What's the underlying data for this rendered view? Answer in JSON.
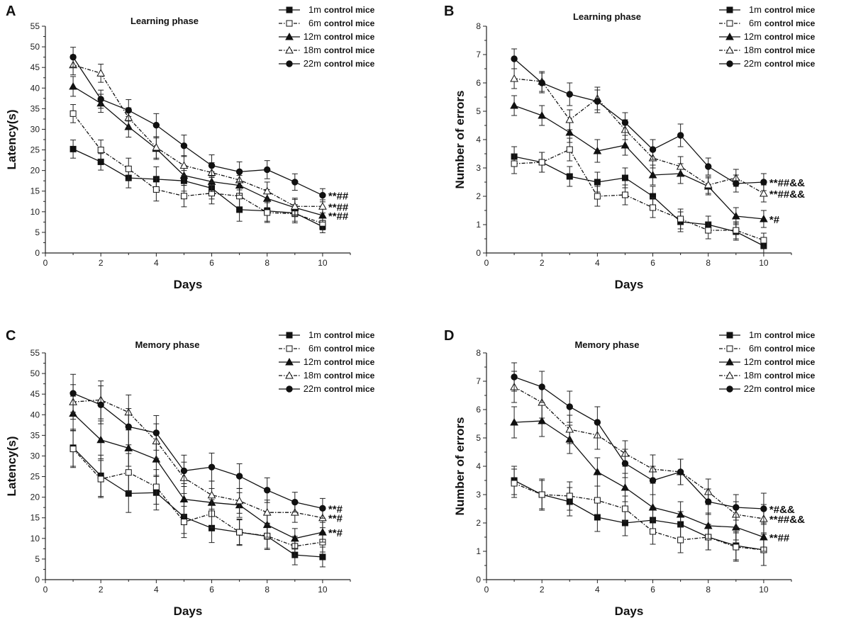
{
  "figure": {
    "legend_suffix": "control mice"
  },
  "chart_data": [
    {
      "panel": "A",
      "type": "line",
      "title": "Learning phase",
      "xlabel": "Days",
      "ylabel": "Latency(s)",
      "xlim": [
        0,
        11
      ],
      "ylim": [
        0,
        55
      ],
      "xticks": [
        0,
        2,
        4,
        6,
        8,
        10
      ],
      "yticks": [
        0,
        5,
        10,
        15,
        20,
        25,
        30,
        35,
        40,
        45,
        50,
        55
      ],
      "x": [
        1,
        2,
        3,
        4,
        5,
        6,
        7,
        8,
        9,
        10
      ],
      "series": [
        {
          "name": "1m",
          "marker": "square",
          "filled": true,
          "dashed": false,
          "values": [
            25.2,
            22.1,
            18.2,
            17.9,
            17.5,
            15.7,
            10.5,
            10.2,
            9.7,
            6.4
          ],
          "errors": [
            2.2,
            2.0,
            2.4,
            3.0,
            2.5,
            2.6,
            2.8,
            2.5,
            2.0,
            1.5
          ]
        },
        {
          "name": "6m",
          "marker": "square",
          "filled": false,
          "dashed": true,
          "values": [
            33.8,
            25.0,
            20.4,
            15.4,
            13.8,
            14.5,
            13.8,
            9.8,
            9.5,
            7.2
          ],
          "errors": [
            2.2,
            2.4,
            2.6,
            2.8,
            2.6,
            2.6,
            2.6,
            2.4,
            2.2,
            1.6
          ]
        },
        {
          "name": "12m",
          "marker": "triangle",
          "filled": true,
          "dashed": false,
          "values": [
            40.4,
            36.3,
            30.6,
            25.3,
            18.8,
            17.3,
            16.4,
            13.2,
            11.0,
            9.1
          ],
          "errors": [
            2.4,
            2.2,
            2.5,
            2.6,
            2.4,
            2.4,
            2.4,
            2.2,
            2.0,
            1.6
          ]
        },
        {
          "name": "18m",
          "marker": "triangle",
          "filled": false,
          "dashed": true,
          "values": [
            45.6,
            43.6,
            32.8,
            25.6,
            21.2,
            19.5,
            17.7,
            15.0,
            11.3,
            11.3
          ],
          "errors": [
            2.4,
            2.2,
            2.4,
            2.6,
            2.4,
            2.4,
            2.4,
            2.2,
            2.0,
            1.6
          ]
        },
        {
          "name": "22m",
          "marker": "circle",
          "filled": true,
          "dashed": false,
          "values": [
            47.5,
            37.3,
            34.6,
            31.0,
            26.0,
            21.2,
            19.7,
            20.2,
            17.2,
            14.0
          ],
          "errors": [
            2.4,
            2.2,
            2.6,
            2.8,
            2.6,
            2.6,
            2.4,
            2.2,
            2.0,
            1.6
          ]
        }
      ],
      "significance": [
        {
          "series": "22m",
          "label": "**##"
        },
        {
          "series": "18m",
          "label": "**##"
        },
        {
          "series": "12m",
          "label": "**##"
        }
      ]
    },
    {
      "panel": "B",
      "type": "line",
      "title": "Learning phase",
      "xlabel": "Days",
      "ylabel": "Number of errors",
      "xlim": [
        0,
        11
      ],
      "ylim": [
        0,
        8
      ],
      "xticks": [
        0,
        2,
        4,
        6,
        8,
        10
      ],
      "yticks": [
        0,
        1,
        2,
        3,
        4,
        5,
        6,
        7,
        8
      ],
      "x": [
        1,
        2,
        3,
        4,
        5,
        6,
        7,
        8,
        9,
        10
      ],
      "series": [
        {
          "name": "1m",
          "marker": "square",
          "filled": true,
          "dashed": false,
          "values": [
            3.4,
            3.2,
            2.7,
            2.5,
            2.65,
            2.0,
            1.1,
            1.0,
            0.75,
            0.25
          ],
          "errors": [
            0.35,
            0.35,
            0.35,
            0.35,
            0.35,
            0.35,
            0.35,
            0.3,
            0.3,
            0.25
          ]
        },
        {
          "name": "6m",
          "marker": "square",
          "filled": false,
          "dashed": true,
          "values": [
            3.15,
            3.2,
            3.65,
            2.0,
            2.05,
            1.6,
            1.2,
            0.8,
            0.8,
            0.45
          ],
          "errors": [
            0.35,
            0.35,
            0.4,
            0.35,
            0.35,
            0.35,
            0.35,
            0.3,
            0.3,
            0.25
          ]
        },
        {
          "name": "12m",
          "marker": "triangle",
          "filled": true,
          "dashed": false,
          "values": [
            5.2,
            4.85,
            4.25,
            3.6,
            3.8,
            2.75,
            2.8,
            2.35,
            1.3,
            1.2
          ],
          "errors": [
            0.35,
            0.35,
            0.35,
            0.4,
            0.35,
            0.35,
            0.35,
            0.3,
            0.3,
            0.3
          ]
        },
        {
          "name": "18m",
          "marker": "triangle",
          "filled": false,
          "dashed": true,
          "values": [
            6.15,
            6.05,
            4.7,
            5.45,
            4.35,
            3.35,
            3.05,
            2.4,
            2.65,
            2.1
          ],
          "errors": [
            0.35,
            0.35,
            0.35,
            0.4,
            0.35,
            0.35,
            0.35,
            0.3,
            0.3,
            0.3
          ]
        },
        {
          "name": "22m",
          "marker": "circle",
          "filled": true,
          "dashed": false,
          "values": [
            6.85,
            6.0,
            5.6,
            5.35,
            4.6,
            3.65,
            4.15,
            3.05,
            2.45,
            2.5
          ],
          "errors": [
            0.35,
            0.35,
            0.4,
            0.4,
            0.35,
            0.35,
            0.4,
            0.3,
            0.3,
            0.3
          ]
        }
      ],
      "significance": [
        {
          "series": "22m",
          "label": "**##&&"
        },
        {
          "series": "18m",
          "label": "**##&&"
        },
        {
          "series": "12m",
          "label": "*#"
        }
      ]
    },
    {
      "panel": "C",
      "type": "line",
      "title": "Memory phase",
      "xlabel": "Days",
      "ylabel": "Latency(s)",
      "xlim": [
        0,
        11
      ],
      "ylim": [
        0,
        55
      ],
      "xticks": [
        0,
        2,
        4,
        6,
        8,
        10
      ],
      "yticks": [
        0,
        5,
        10,
        15,
        20,
        25,
        30,
        35,
        40,
        45,
        50,
        55
      ],
      "x": [
        1,
        2,
        3,
        4,
        5,
        6,
        7,
        8,
        9,
        10
      ],
      "series": [
        {
          "name": "1m",
          "marker": "square",
          "filled": true,
          "dashed": false,
          "values": [
            32.0,
            25.2,
            20.9,
            21.1,
            15.2,
            12.5,
            11.5,
            10.5,
            6.0,
            5.5
          ],
          "errors": [
            4.5,
            5.0,
            4.6,
            4.2,
            4.0,
            3.5,
            3.2,
            3.2,
            2.4,
            2.4
          ]
        },
        {
          "name": "6m",
          "marker": "square",
          "filled": false,
          "dashed": true,
          "values": [
            31.7,
            24.4,
            26.0,
            22.5,
            14.0,
            16.0,
            11.5,
            10.6,
            8.1,
            9.1
          ],
          "errors": [
            4.5,
            4.5,
            4.6,
            4.2,
            3.8,
            3.4,
            3.0,
            3.0,
            2.4,
            2.4
          ]
        },
        {
          "name": "12m",
          "marker": "triangle",
          "filled": true,
          "dashed": false,
          "values": [
            40.3,
            33.9,
            31.9,
            29.2,
            19.5,
            18.7,
            18.1,
            13.3,
            10.0,
            11.5
          ],
          "errors": [
            4.2,
            4.6,
            4.4,
            4.2,
            3.8,
            3.4,
            3.0,
            3.0,
            2.4,
            2.4
          ]
        },
        {
          "name": "18m",
          "marker": "triangle",
          "filled": false,
          "dashed": true,
          "values": [
            43.1,
            43.6,
            40.6,
            33.6,
            24.7,
            20.5,
            19.1,
            16.3,
            16.3,
            15.0
          ],
          "errors": [
            4.2,
            4.6,
            4.2,
            4.2,
            3.8,
            3.4,
            3.0,
            3.0,
            2.4,
            2.4
          ]
        },
        {
          "name": "22m",
          "marker": "circle",
          "filled": true,
          "dashed": false,
          "values": [
            45.2,
            42.4,
            37.1,
            35.6,
            26.4,
            27.3,
            25.1,
            21.7,
            18.8,
            17.3
          ],
          "errors": [
            4.6,
            4.6,
            4.4,
            4.2,
            3.8,
            3.4,
            3.0,
            3.0,
            2.4,
            2.4
          ]
        }
      ],
      "significance": [
        {
          "series": "22m",
          "label": "**#"
        },
        {
          "series": "18m",
          "label": "**#"
        },
        {
          "series": "12m",
          "label": "**#"
        }
      ]
    },
    {
      "panel": "D",
      "type": "line",
      "title": "Memory phase",
      "xlabel": "Days",
      "ylabel": "Number of errors",
      "xlim": [
        0,
        11
      ],
      "ylim": [
        0,
        8
      ],
      "xticks": [
        0,
        2,
        4,
        6,
        8,
        10
      ],
      "yticks": [
        0,
        1,
        2,
        3,
        4,
        5,
        6,
        7,
        8
      ],
      "x": [
        1,
        2,
        3,
        4,
        5,
        6,
        7,
        8,
        9,
        10
      ],
      "series": [
        {
          "name": "1m",
          "marker": "square",
          "filled": true,
          "dashed": false,
          "values": [
            3.5,
            3.0,
            2.75,
            2.2,
            2.0,
            2.1,
            1.95,
            1.5,
            1.2,
            1.05
          ],
          "errors": [
            0.5,
            0.55,
            0.5,
            0.5,
            0.45,
            0.45,
            0.45,
            0.45,
            0.5,
            0.55
          ]
        },
        {
          "name": "6m",
          "marker": "square",
          "filled": false,
          "dashed": true,
          "values": [
            3.4,
            3.0,
            2.95,
            2.8,
            2.5,
            1.7,
            1.4,
            1.5,
            1.15,
            1.05
          ],
          "errors": [
            0.5,
            0.5,
            0.5,
            0.5,
            0.45,
            0.45,
            0.45,
            0.45,
            0.5,
            0.55
          ]
        },
        {
          "name": "12m",
          "marker": "triangle",
          "filled": true,
          "dashed": false,
          "values": [
            5.55,
            5.6,
            4.95,
            3.8,
            3.25,
            2.55,
            2.3,
            1.9,
            1.85,
            1.5
          ],
          "errors": [
            0.55,
            0.55,
            0.5,
            0.5,
            0.5,
            0.45,
            0.45,
            0.45,
            0.45,
            0.5
          ]
        },
        {
          "name": "18m",
          "marker": "triangle",
          "filled": false,
          "dashed": true,
          "values": [
            6.8,
            6.25,
            5.3,
            5.1,
            4.45,
            3.9,
            3.8,
            3.1,
            2.3,
            2.15
          ],
          "errors": [
            0.55,
            0.55,
            0.5,
            0.5,
            0.45,
            0.5,
            0.45,
            0.45,
            0.45,
            0.5
          ]
        },
        {
          "name": "22m",
          "marker": "circle",
          "filled": true,
          "dashed": false,
          "values": [
            7.15,
            6.8,
            6.1,
            5.55,
            4.1,
            3.5,
            3.8,
            2.75,
            2.55,
            2.5
          ],
          "errors": [
            0.5,
            0.55,
            0.55,
            0.55,
            0.5,
            0.5,
            0.45,
            0.45,
            0.45,
            0.55
          ]
        }
      ],
      "significance": [
        {
          "series": "22m",
          "label": "*#&&"
        },
        {
          "series": "18m",
          "label": "**##&&"
        },
        {
          "series": "12m",
          "label": "**##"
        }
      ]
    }
  ]
}
